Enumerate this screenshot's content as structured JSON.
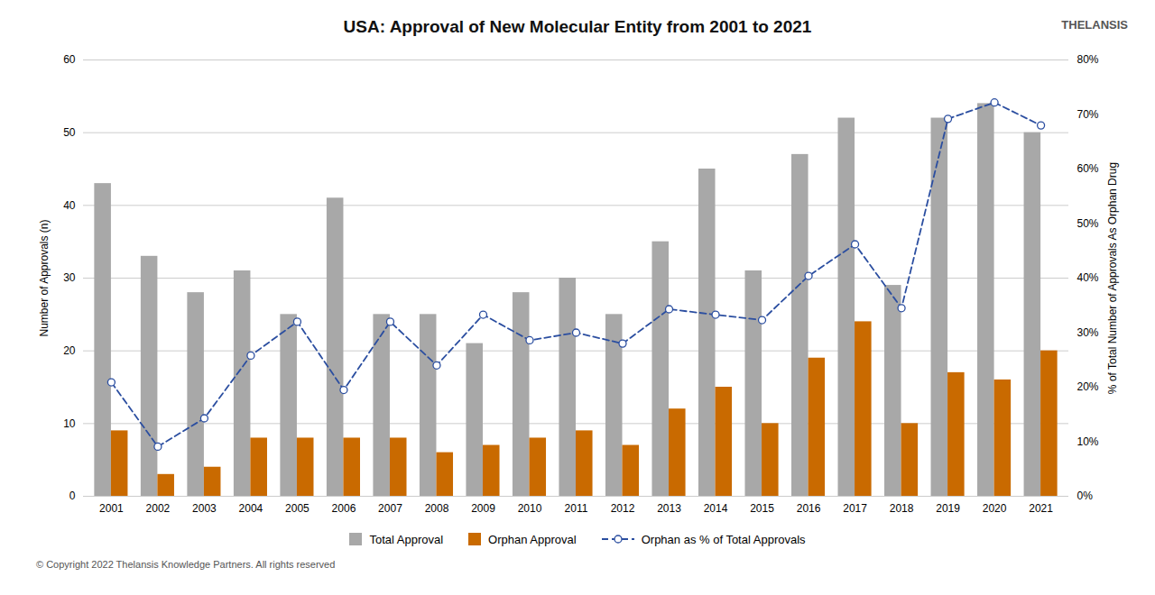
{
  "chart_data": {
    "type": "bar",
    "title": "USA: Approval of New Molecular Entity from 2001 to 2021",
    "ylabel": "Number of Approvals (n)",
    "y2label": "% of Total Number of Approvals As Orphan Drug",
    "categories": [
      "2001",
      "2002",
      "2003",
      "2004",
      "2005",
      "2006",
      "2007",
      "2008",
      "2009",
      "2010",
      "2011",
      "2012",
      "2013",
      "2014",
      "2015",
      "2016",
      "2017",
      "2018",
      "2019",
      "2020",
      "2021"
    ],
    "series": [
      {
        "name": "Total Approval",
        "color": "#A8A8A8",
        "values": [
          43,
          33,
          28,
          31,
          25,
          41,
          25,
          25,
          21,
          28,
          30,
          25,
          35,
          45,
          31,
          47,
          52,
          29,
          52,
          54,
          50
        ]
      },
      {
        "name": "Orphan Approval",
        "color": "#C96A00",
        "values": [
          9,
          3,
          4,
          8,
          8,
          8,
          8,
          6,
          7,
          8,
          9,
          7,
          12,
          15,
          10,
          19,
          24,
          10,
          17,
          16,
          20
        ]
      },
      {
        "name": "Orphan as % of Total Approvals",
        "type": "line",
        "axis": "y2",
        "color": "#2B4EA0",
        "line_style": "dashed",
        "marker": "circle",
        "values": [
          0.209,
          0.091,
          0.143,
          0.258,
          0.32,
          0.195,
          0.32,
          0.24,
          0.333,
          0.286,
          0.3,
          0.28,
          0.343,
          0.333,
          0.323,
          0.404,
          0.462,
          0.345,
          0.692,
          0.722,
          0.68
        ]
      }
    ],
    "ylim": [
      0,
      60
    ],
    "yticks": [
      0,
      10,
      20,
      30,
      40,
      50,
      60
    ],
    "y2lim": [
      0,
      0.8
    ],
    "y2ticks": [
      {
        "value": 0,
        "label": "0%"
      },
      {
        "value": 0.1,
        "label": "10%"
      },
      {
        "value": 0.2,
        "label": "20%"
      },
      {
        "value": 0.3,
        "label": "30%"
      },
      {
        "value": 0.4,
        "label": "40%"
      },
      {
        "value": 0.5,
        "label": "50%"
      },
      {
        "value": 0.6,
        "label": "60%"
      },
      {
        "value": 0.7,
        "label": "70%"
      },
      {
        "value": 0.8,
        "label": "80%"
      }
    ],
    "grid": true,
    "legend": "bottom",
    "annotations": [
      "© Copyright 2022  Thelansis Knowledge Partners. All rights reserved",
      "THELANSIS"
    ]
  }
}
